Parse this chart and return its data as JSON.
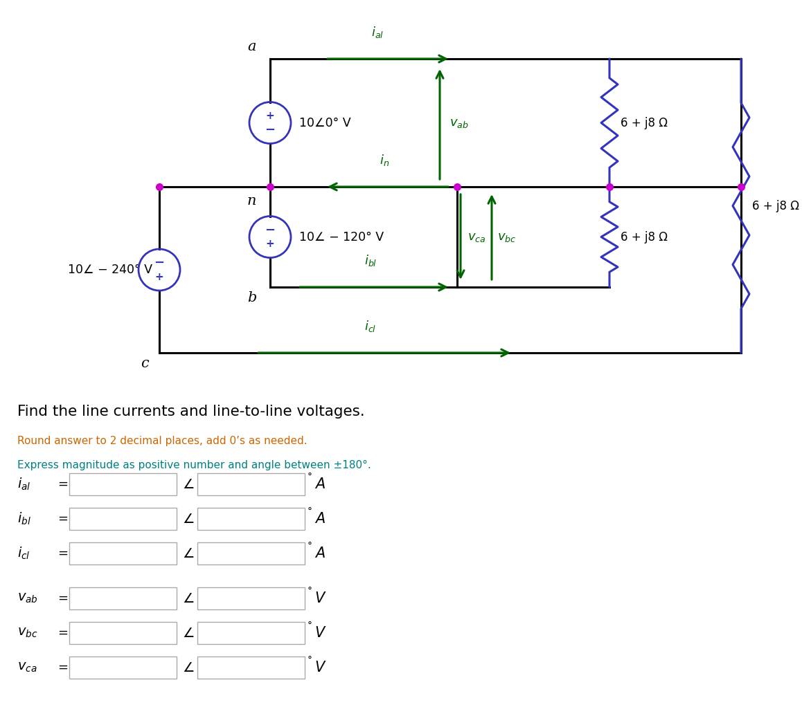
{
  "bg_color": "#ffffff",
  "wire_color": "#000000",
  "green_color": "#006400",
  "magenta_color": "#cc00cc",
  "blue_color": "#3333bb",
  "resistor_color": "#00008B",
  "black": "#000000",
  "orange_color": "#cc6600",
  "teal_color": "#008080",
  "title": "Find the line currents and line-to-line voltages.",
  "subtitle1": "Round answer to 2 decimal places, add 0’s as needed.",
  "subtitle2": "Express magnitude as positive number and angle between ±180°.",
  "vs1_label": "10∠0° V",
  "vs2_label": "10∠ − 120° V",
  "vs3_label": "10∠ − 240° V",
  "z_label": "6 + j8 Ω",
  "node_a": "a",
  "node_b": "b",
  "node_c": "c",
  "node_n": "n",
  "ial": "$i_{al}$",
  "ibl": "$i_{bl}$",
  "icl": "$i_{cl}$",
  "in": "$i_n$",
  "vab": "$v_{ab}$",
  "vbc": "$v_{bc}$",
  "vca": "$v_{ca}$",
  "row_labels": [
    "$\\mathit{i}_{al}$",
    "$\\mathit{i}_{bl}$",
    "$\\mathit{i}_{cl}$",
    "$v_{ab}$",
    "$v_{bc}$",
    "$v_{ca}$"
  ],
  "row_units": [
    "A",
    "A",
    "A",
    "V",
    "V",
    "V"
  ]
}
